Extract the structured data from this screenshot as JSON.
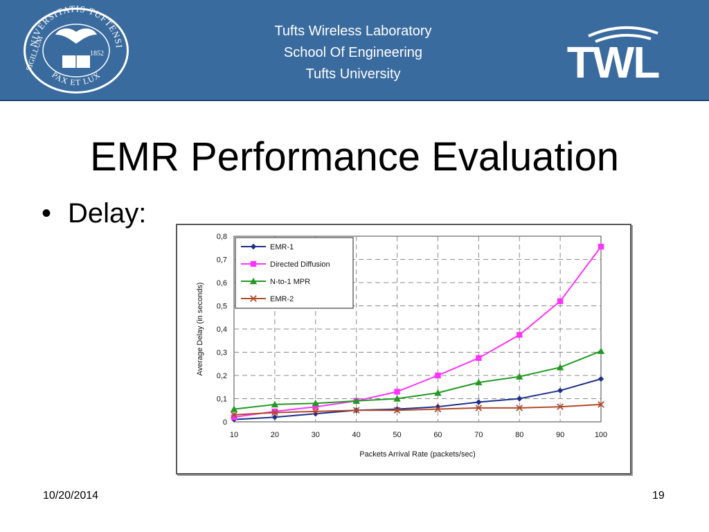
{
  "header": {
    "lab_lines": [
      "Tufts Wireless Laboratory",
      "School Of Engineering",
      "Tufts University"
    ],
    "logo_text": "TWL",
    "seal": {
      "top_text": "UNIVERSITATIS TUFTENSIS",
      "left_text": "SIGILLUM",
      "bottom_text": "PAX ET LUX",
      "year": "1852"
    },
    "colors": {
      "band": "#3a6b9e",
      "text": "#ffffff"
    }
  },
  "slide": {
    "title": "EMR Performance Evaluation",
    "bullet": "Delay:",
    "footer_date": "10/20/2014",
    "page_number": "19"
  },
  "chart_data": {
    "type": "line",
    "x": [
      10,
      20,
      30,
      40,
      50,
      60,
      70,
      80,
      90,
      100
    ],
    "xticklabels": [
      "10",
      "20",
      "30",
      "40",
      "50",
      "60",
      "70",
      "80",
      "90",
      "100"
    ],
    "yticklabels": [
      "0",
      "0,1",
      "0,2",
      "0,3",
      "0,4",
      "0,5",
      "0,6",
      "0,7",
      "0,8"
    ],
    "ylim": [
      0,
      0.8
    ],
    "xlabel": "Packets Arrival Rate (packets/sec)",
    "ylabel": "Average Delay (in seconds)",
    "grid": true,
    "legend_position": "top-left",
    "series": [
      {
        "name": "EMR-1",
        "color": "#1c2f8a",
        "marker": "diamond",
        "values": [
          0.01,
          0.02,
          0.035,
          0.05,
          0.055,
          0.065,
          0.085,
          0.1,
          0.135,
          0.185
        ]
      },
      {
        "name": "Directed Diffusion",
        "color": "#ff33ff",
        "marker": "square",
        "values": [
          0.02,
          0.045,
          0.065,
          0.09,
          0.13,
          0.2,
          0.275,
          0.375,
          0.52,
          0.755
        ]
      },
      {
        "name": "N-to-1 MPR",
        "color": "#229922",
        "marker": "triangle",
        "values": [
          0.055,
          0.075,
          0.08,
          0.09,
          0.1,
          0.125,
          0.17,
          0.195,
          0.235,
          0.305
        ]
      },
      {
        "name": "EMR-2",
        "color": "#b04a2a",
        "marker": "x",
        "values": [
          0.03,
          0.04,
          0.045,
          0.05,
          0.05,
          0.055,
          0.06,
          0.06,
          0.065,
          0.075
        ]
      }
    ]
  }
}
